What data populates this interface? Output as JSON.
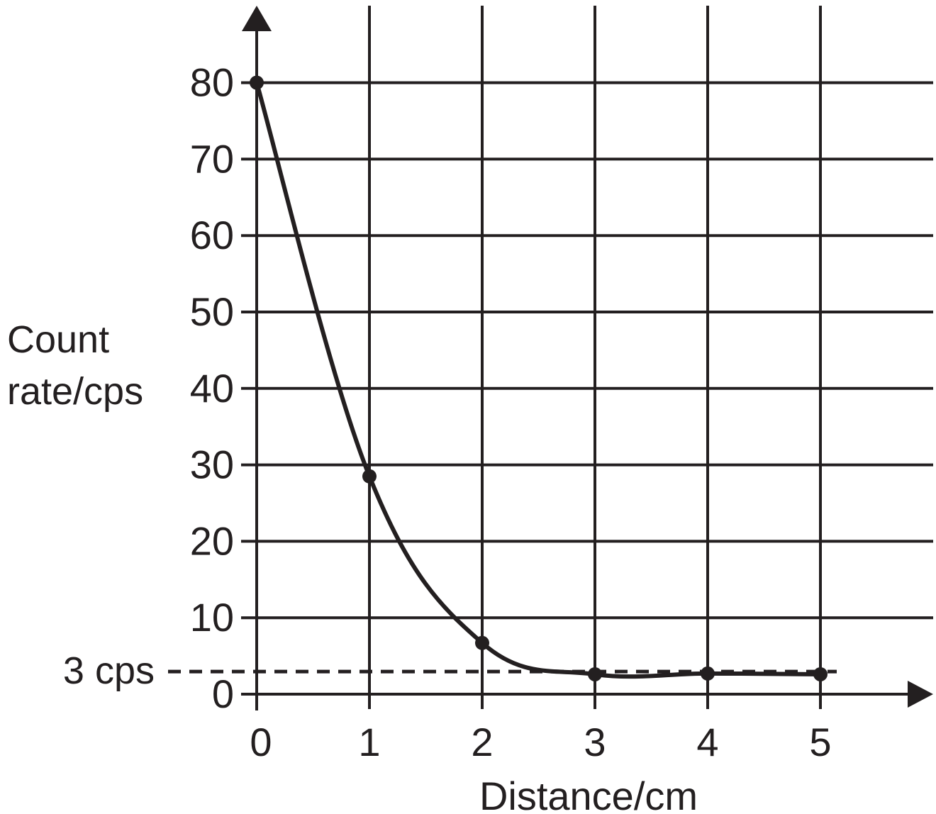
{
  "chart_data": {
    "type": "line",
    "xlabel": "Distance/cm",
    "ylabel_lines": [
      "Count",
      "rate/cps"
    ],
    "x_ticks": [
      "0",
      "1",
      "2",
      "3",
      "4",
      "5"
    ],
    "y_ticks": [
      "0",
      "10",
      "20",
      "30",
      "40",
      "50",
      "60",
      "70",
      "80"
    ],
    "xlim": [
      0,
      5
    ],
    "ylim": [
      0,
      80
    ],
    "grid": true,
    "series": [
      {
        "x": [
          0,
          1,
          2,
          3,
          4,
          5
        ],
        "y": [
          80,
          28.5,
          6.7,
          2.6,
          2.7,
          2.6
        ]
      }
    ],
    "reference_line": {
      "y": 3,
      "label": "3 cps",
      "style": "dashed"
    },
    "colors": {
      "ink": "#231f20",
      "background": "#ffffff"
    }
  }
}
